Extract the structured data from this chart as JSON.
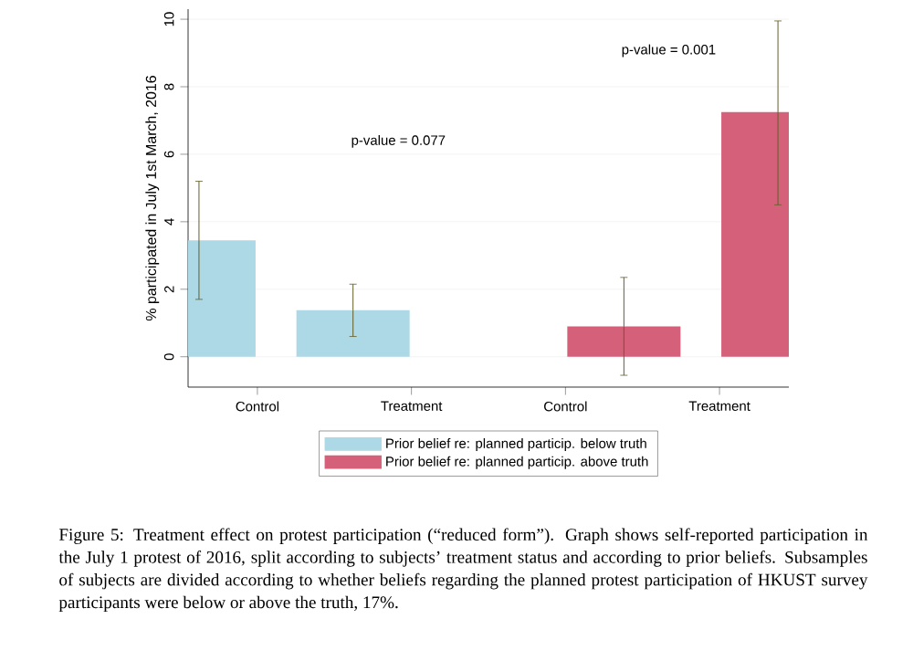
{
  "chart_data": {
    "type": "bar",
    "ylabel": "% participated in July 1st March, 2016",
    "categories": [
      "Control",
      "Treatment",
      "Control",
      "Treatment"
    ],
    "series": [
      {
        "name": "Prior belief re: planned particip. below truth",
        "color": "#add8e6",
        "values": [
          3.45,
          1.38,
          null,
          null
        ],
        "errors": [
          [
            1.7,
            5.2
          ],
          [
            0.6,
            2.15
          ],
          null,
          null
        ]
      },
      {
        "name": "Prior belief re: planned particip. above truth",
        "color": "#d5607a",
        "values": [
          null,
          null,
          0.9,
          7.25
        ],
        "errors": [
          null,
          null,
          [
            -0.55,
            2.35
          ],
          [
            4.5,
            9.95
          ]
        ]
      }
    ],
    "ylim": [
      -0.9,
      10.3
    ],
    "yticks": [
      0,
      2,
      4,
      6,
      8,
      10
    ],
    "grid": "y",
    "legend": "bottom",
    "annotations": [
      "p-value = 0.077",
      "p-value = 0.001",
      "Figure 5: Treatment effect on protest participation (“reduced form”). Graph shows self-reported participation in the July 1 protest of 2016, split according to subjects’ treatment status and according to prior beliefs. Subsamples of subjects are divided according to whether beliefs regarding the planned protest participation of HKUST survey participants were below or above the truth, 17%."
    ]
  }
}
